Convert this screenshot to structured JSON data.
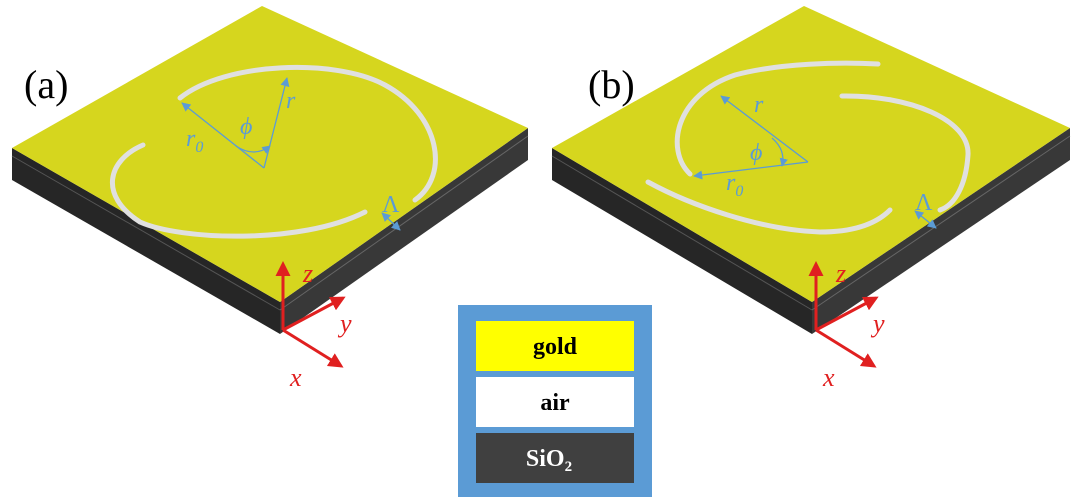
{
  "panels": [
    {
      "label": "(a)",
      "symbols": {
        "r": "r",
        "r0": "r",
        "r0_sub": "0",
        "phi": "ϕ",
        "period": "Λ"
      }
    },
    {
      "label": "(b)",
      "symbols": {
        "r": "r",
        "r0": "r",
        "r0_sub": "0",
        "phi": "ϕ",
        "period": "Λ"
      }
    }
  ],
  "axes": {
    "x": "x",
    "y": "y",
    "z": "z"
  },
  "legend": {
    "items": [
      {
        "name": "gold",
        "color": "#ffff00",
        "text_color": "#000000"
      },
      {
        "name": "air",
        "color": "#ffffff",
        "text_color": "#000000"
      },
      {
        "name": "SiO",
        "subscript": "2",
        "color": "#404040",
        "text_color": "#ffffff"
      }
    ],
    "border_color": "#5b9bd5"
  },
  "colors": {
    "gold_surface": "#d6d61e",
    "substrate_side": "#2a2a2a",
    "slit": "#dcdcdc",
    "annotation": "#5b9bd5",
    "axis": "#e02020"
  }
}
